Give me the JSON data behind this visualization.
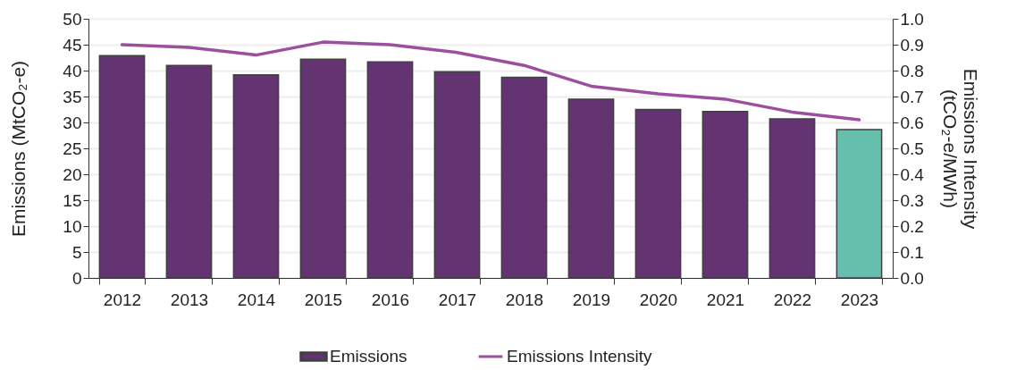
{
  "chart_data": {
    "type": "bar",
    "categories": [
      "2012",
      "2013",
      "2014",
      "2015",
      "2016",
      "2017",
      "2018",
      "2019",
      "2020",
      "2021",
      "2022",
      "2023"
    ],
    "series": [
      {
        "name": "Emissions",
        "color": "#633372",
        "colors": [
          "#633372",
          "#633372",
          "#633372",
          "#633372",
          "#633372",
          "#633372",
          "#633372",
          "#633372",
          "#633372",
          "#633372",
          "#633372",
          "#66bfad"
        ],
        "values": [
          42.9,
          41.0,
          39.2,
          42.2,
          41.7,
          39.8,
          38.7,
          34.5,
          32.5,
          32.1,
          30.7,
          28.6
        ]
      },
      {
        "name": "Emissions Intensity",
        "type": "line",
        "axis": "y2",
        "color": "#9b4f9e",
        "values": [
          0.9,
          0.89,
          0.86,
          0.91,
          0.9,
          0.87,
          0.82,
          0.74,
          0.71,
          0.69,
          0.64,
          0.61
        ]
      }
    ],
    "ylabel": "Emissions (MtCO₂-e)",
    "y2label": "Emissions Intensity\n(tCO₂-e/MWh)",
    "ylim": [
      0,
      50
    ],
    "yticks": [
      0,
      5,
      10,
      15,
      20,
      25,
      30,
      35,
      40,
      45,
      50
    ],
    "y2lim": [
      0,
      1
    ],
    "y2ticks": [
      {
        "value": 0,
        "label": "0.0"
      },
      {
        "value": 0.1,
        "label": "0.1"
      },
      {
        "value": 0.2,
        "label": "0.2"
      },
      {
        "value": 0.3,
        "label": "0.3"
      },
      {
        "value": 0.4,
        "label": "0.4"
      },
      {
        "value": 0.5,
        "label": "0.5"
      },
      {
        "value": 0.6,
        "label": "0.6"
      },
      {
        "value": 0.7,
        "label": "0.7"
      },
      {
        "value": 0.8,
        "label": "0.8"
      },
      {
        "value": 0.9,
        "label": "0.9"
      },
      {
        "value": 1,
        "label": "1.0"
      }
    ],
    "grid": "y",
    "legend": "bottom",
    "line_style": "solid",
    "marker": "none"
  }
}
